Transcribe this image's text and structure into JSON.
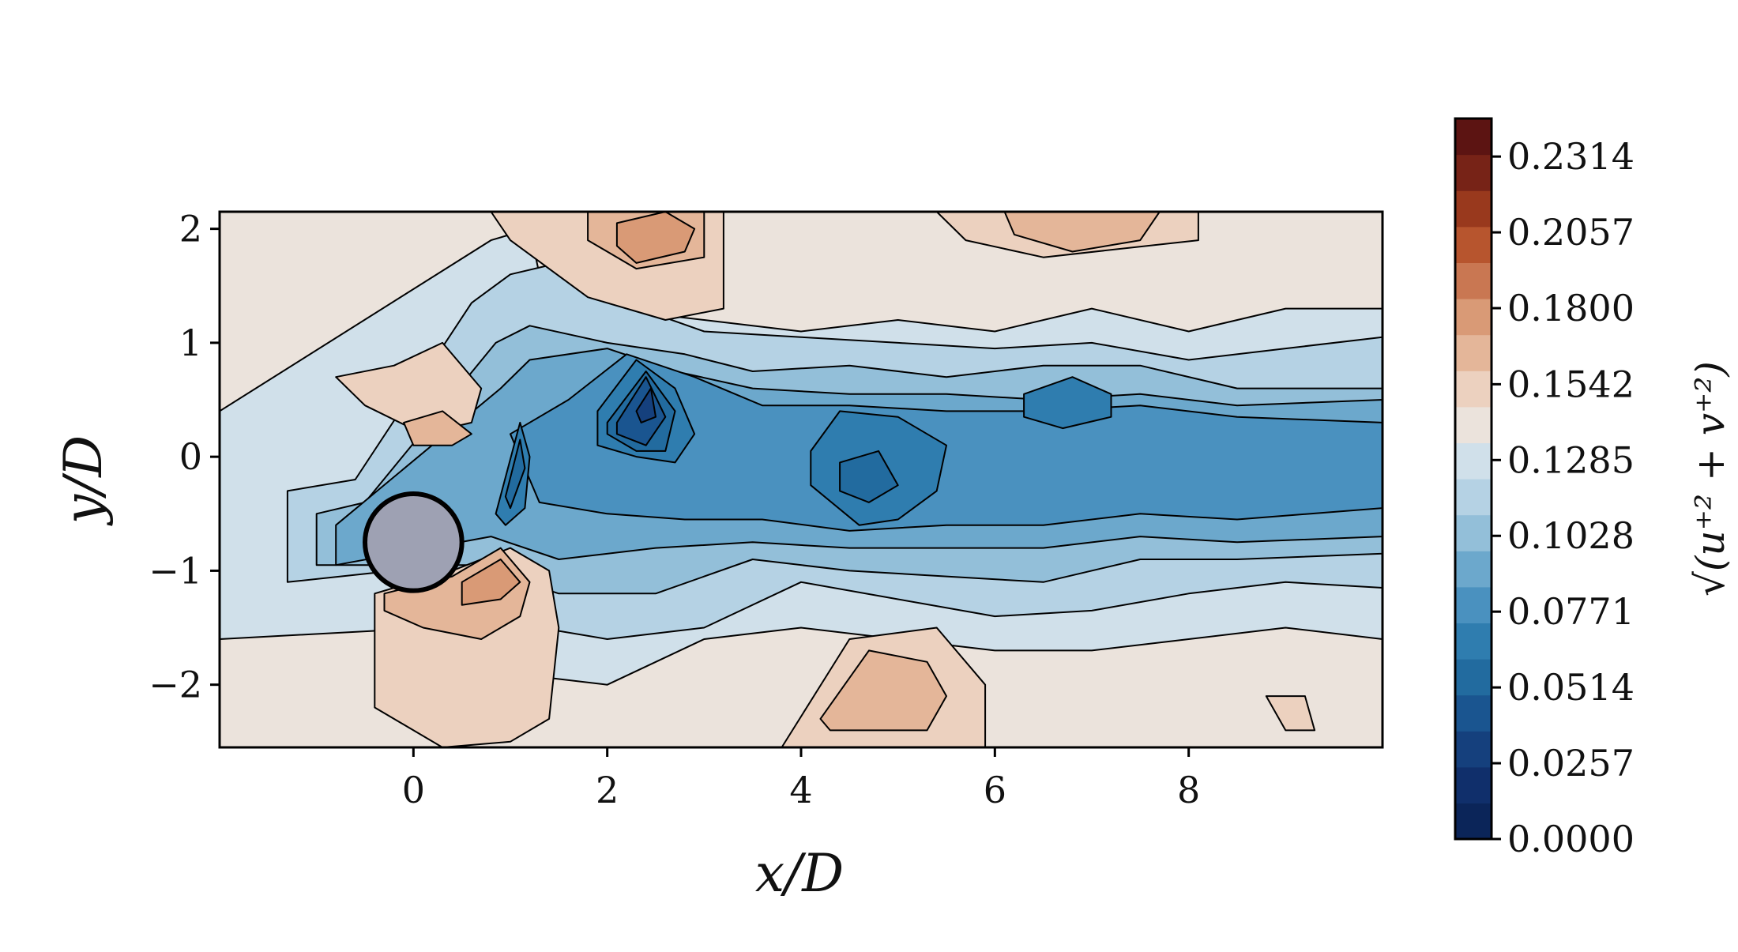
{
  "chart_data": {
    "type": "heatmap",
    "subtype": "filled-contour",
    "xlabel": "x/D",
    "ylabel": "y/D",
    "xlim": [
      -2.0,
      10.0
    ],
    "ylim": [
      -2.55,
      2.15
    ],
    "xticks": [
      0,
      2,
      4,
      6,
      8
    ],
    "xtick_labels": [
      "0",
      "2",
      "4",
      "6",
      "8"
    ],
    "yticks": [
      2,
      1,
      0,
      -1,
      -2
    ],
    "ytick_labels": [
      "2",
      "1",
      "0",
      "−1",
      "−2"
    ],
    "colorbar": {
      "label": "√(u⁺² + v⁺²)",
      "range": [
        0.0,
        0.2443
      ],
      "levels": 19,
      "ticks": [
        0.0,
        0.0257,
        0.0514,
        0.0771,
        0.1028,
        0.1285,
        0.1542,
        0.18,
        0.2057,
        0.2314
      ],
      "tick_labels": [
        "0.0000",
        "0.0257",
        "0.0514",
        "0.0771",
        "0.1028",
        "0.1285",
        "0.1542",
        "0.1800",
        "0.2057",
        "0.2314"
      ],
      "colors": [
        "#0b2559",
        "#102f6b",
        "#15407d",
        "#1a5590",
        "#226b9f",
        "#2f7daf",
        "#4a91bf",
        "#6ca8cc",
        "#93bfd9",
        "#b5d2e4",
        "#d0e0ea",
        "#ebe3dc",
        "#ecd1bf",
        "#e4b699",
        "#d99a76",
        "#c97752",
        "#b7552e",
        "#99391d",
        "#772317",
        "#5c1412"
      ]
    },
    "cylinder": {
      "center_x": 0.0,
      "center_y": -0.75,
      "diameter": 1.0,
      "fill": "#9ea1b3"
    },
    "regions": [
      {
        "level": 10,
        "x": [
          -2.0,
          0.8,
          1.2,
          1.3,
          2.0,
          3.0,
          4.0,
          5.0,
          6.0,
          7.0,
          8.0,
          9.0,
          10.0,
          10.0,
          9.0,
          8.0,
          7.0,
          6.0,
          5.0,
          4.0,
          3.0,
          2.0,
          1.0,
          0.2,
          -2.0
        ],
        "y": [
          0.4,
          1.9,
          2.0,
          1.6,
          1.3,
          1.2,
          1.1,
          1.2,
          1.1,
          1.3,
          1.1,
          1.3,
          1.3,
          -1.6,
          -1.5,
          -1.6,
          -1.7,
          -1.7,
          -1.6,
          -1.5,
          -1.6,
          -2.0,
          -1.9,
          -1.5,
          -1.6
        ]
      },
      {
        "level": 9,
        "x": [
          -1.3,
          -0.6,
          0.6,
          1.0,
          1.5,
          2.0,
          3.0,
          4.0,
          5.0,
          6.0,
          7.0,
          8.0,
          9.0,
          10.0,
          10.0,
          9.0,
          8.0,
          7.0,
          6.0,
          5.0,
          4.0,
          3.0,
          2.0,
          1.3,
          0.6,
          -0.2,
          -1.3
        ],
        "y": [
          -0.3,
          -0.2,
          1.35,
          1.6,
          1.7,
          1.4,
          1.1,
          1.05,
          1.0,
          0.95,
          1.0,
          0.85,
          0.95,
          1.05,
          -1.15,
          -1.1,
          -1.2,
          -1.35,
          -1.4,
          -1.25,
          -1.1,
          -1.5,
          -1.6,
          -1.5,
          -1.1,
          -1.0,
          -1.1
        ]
      },
      {
        "level": 8,
        "x": [
          -1.0,
          -0.5,
          0.85,
          1.2,
          2.0,
          2.8,
          3.5,
          4.5,
          5.5,
          6.5,
          7.5,
          8.5,
          10.0,
          10.0,
          8.5,
          7.5,
          6.5,
          5.5,
          4.5,
          3.5,
          2.5,
          1.5,
          0.6,
          -0.2,
          -1.0
        ],
        "y": [
          -0.5,
          -0.4,
          1.0,
          1.15,
          1.0,
          0.9,
          0.75,
          0.8,
          0.7,
          0.8,
          0.8,
          0.6,
          0.6,
          -0.85,
          -0.9,
          -0.9,
          -1.1,
          -1.05,
          -1.0,
          -0.9,
          -1.2,
          -1.2,
          -0.95,
          -0.95,
          -0.95
        ]
      },
      {
        "level": 7,
        "x": [
          -0.8,
          0.9,
          1.2,
          2.0,
          2.7,
          3.5,
          4.5,
          5.5,
          6.5,
          7.5,
          8.5,
          10.0,
          10.0,
          8.5,
          7.5,
          6.5,
          5.5,
          4.5,
          3.5,
          2.5,
          1.5,
          0.8,
          -0.8
        ],
        "y": [
          -0.6,
          0.6,
          0.85,
          0.95,
          0.75,
          0.6,
          0.55,
          0.55,
          0.5,
          0.55,
          0.45,
          0.5,
          -0.7,
          -0.75,
          -0.7,
          -0.8,
          -0.8,
          -0.8,
          -0.75,
          -0.8,
          -0.9,
          -0.7,
          -0.95
        ]
      },
      {
        "level": 6,
        "x": [
          1.0,
          1.6,
          2.2,
          2.9,
          3.6,
          4.5,
          5.5,
          6.5,
          7.5,
          8.5,
          10.0,
          10.0,
          8.5,
          7.5,
          6.5,
          5.5,
          4.5,
          3.6,
          2.8,
          2.0,
          1.3
        ],
        "y": [
          0.2,
          0.5,
          0.9,
          0.7,
          0.45,
          0.45,
          0.4,
          0.4,
          0.45,
          0.35,
          0.3,
          -0.45,
          -0.55,
          -0.5,
          -0.6,
          -0.6,
          -0.65,
          -0.55,
          -0.55,
          -0.5,
          -0.4
        ]
      },
      {
        "level": 5,
        "x": [
          1.9,
          2.3,
          2.7,
          2.9,
          2.7,
          2.3,
          1.9
        ],
        "y": [
          0.4,
          0.85,
          0.6,
          0.2,
          -0.05,
          0.0,
          0.1
        ]
      },
      {
        "level": 5,
        "x": [
          4.1,
          4.4,
          5.0,
          5.5,
          5.4,
          5.0,
          4.6,
          4.1
        ],
        "y": [
          0.05,
          0.4,
          0.35,
          0.1,
          -0.3,
          -0.55,
          -0.6,
          -0.25
        ]
      },
      {
        "level": 5,
        "x": [
          6.3,
          6.8,
          7.2,
          7.2,
          6.7,
          6.3
        ],
        "y": [
          0.55,
          0.7,
          0.55,
          0.35,
          0.25,
          0.35
        ]
      },
      {
        "level": 5,
        "x": [
          0.85,
          1.1,
          1.2,
          1.15,
          0.95
        ],
        "y": [
          -0.5,
          0.3,
          0.0,
          -0.45,
          -0.6
        ]
      },
      {
        "level": 4,
        "x": [
          2.0,
          2.4,
          2.7,
          2.6,
          2.3,
          2.0
        ],
        "y": [
          0.3,
          0.75,
          0.4,
          0.05,
          0.05,
          0.2
        ]
      },
      {
        "level": 4,
        "x": [
          4.4,
          4.8,
          5.0,
          4.7,
          4.4
        ],
        "y": [
          -0.05,
          0.05,
          -0.25,
          -0.4,
          -0.3
        ]
      },
      {
        "level": 4,
        "x": [
          0.95,
          1.1,
          1.15,
          1.0
        ],
        "y": [
          -0.35,
          0.15,
          -0.1,
          -0.45
        ]
      },
      {
        "level": 3,
        "x": [
          2.1,
          2.4,
          2.6,
          2.4,
          2.1
        ],
        "y": [
          0.3,
          0.7,
          0.35,
          0.1,
          0.2
        ]
      },
      {
        "level": 2,
        "x": [
          2.3,
          2.45,
          2.5,
          2.35
        ],
        "y": [
          0.4,
          0.6,
          0.35,
          0.3
        ]
      },
      {
        "level": 12,
        "x": [
          0.8,
          2.0,
          2.5,
          3.2,
          3.2,
          2.6,
          1.8,
          1.0
        ],
        "y": [
          2.15,
          2.15,
          2.15,
          2.15,
          1.3,
          1.2,
          1.4,
          1.9
        ]
      },
      {
        "level": 13,
        "x": [
          1.8,
          2.4,
          3.0,
          3.0,
          2.3,
          1.8
        ],
        "y": [
          2.15,
          2.15,
          2.15,
          1.75,
          1.65,
          1.9
        ]
      },
      {
        "level": 14,
        "x": [
          2.1,
          2.6,
          2.9,
          2.8,
          2.3,
          2.1
        ],
        "y": [
          2.05,
          2.15,
          2.0,
          1.8,
          1.7,
          1.85
        ]
      },
      {
        "level": 12,
        "x": [
          5.4,
          6.5,
          8.1,
          8.1,
          6.5,
          5.7
        ],
        "y": [
          2.15,
          2.15,
          2.15,
          1.9,
          1.75,
          1.9
        ]
      },
      {
        "level": 13,
        "x": [
          6.1,
          7.0,
          7.7,
          7.5,
          6.8,
          6.2
        ],
        "y": [
          2.15,
          2.15,
          2.15,
          1.9,
          1.8,
          1.95
        ]
      },
      {
        "level": 12,
        "x": [
          -0.8,
          -0.2,
          0.3,
          0.7,
          0.6,
          0.1,
          -0.5
        ],
        "y": [
          0.7,
          0.8,
          1.0,
          0.6,
          0.3,
          0.2,
          0.45
        ]
      },
      {
        "level": 13,
        "x": [
          -0.1,
          0.3,
          0.6,
          0.4,
          0.0
        ],
        "y": [
          0.3,
          0.4,
          0.2,
          0.1,
          0.1
        ]
      },
      {
        "level": 12,
        "x": [
          -0.4,
          0.4,
          1.0,
          1.4,
          1.5,
          1.4,
          1.0,
          0.3,
          -0.4
        ],
        "y": [
          -1.2,
          -1.0,
          -0.8,
          -1.0,
          -1.5,
          -2.3,
          -2.5,
          -2.55,
          -2.2
        ]
      },
      {
        "level": 13,
        "x": [
          -0.3,
          0.4,
          0.9,
          1.2,
          1.1,
          0.7,
          0.1,
          -0.3
        ],
        "y": [
          -1.2,
          -1.05,
          -0.8,
          -1.1,
          -1.4,
          -1.6,
          -1.5,
          -1.35
        ]
      },
      {
        "level": 14,
        "x": [
          0.5,
          0.9,
          1.1,
          0.9,
          0.5
        ],
        "y": [
          -1.1,
          -0.9,
          -1.1,
          -1.25,
          -1.3
        ]
      },
      {
        "level": 12,
        "x": [
          3.8,
          4.5,
          5.4,
          5.9,
          5.9,
          3.8
        ],
        "y": [
          -2.55,
          -1.6,
          -1.5,
          -2.0,
          -2.55,
          -2.55
        ]
      },
      {
        "level": 13,
        "x": [
          4.2,
          4.7,
          5.3,
          5.5,
          5.3,
          4.3
        ],
        "y": [
          -2.3,
          -1.7,
          -1.8,
          -2.1,
          -2.4,
          -2.4
        ]
      },
      {
        "level": 12,
        "x": [
          8.8,
          9.2,
          9.3,
          9.0
        ],
        "y": [
          -2.1,
          -2.1,
          -2.4,
          -2.4
        ]
      }
    ]
  }
}
